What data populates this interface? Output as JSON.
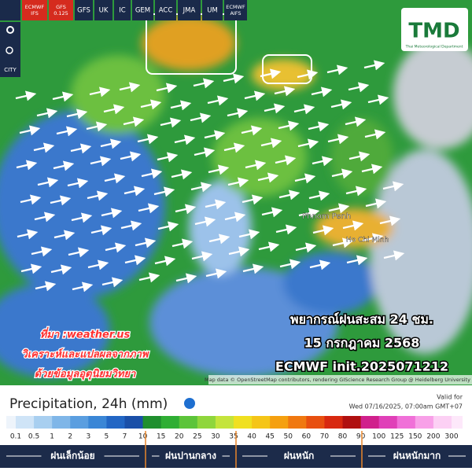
{
  "header": {
    "tabs": [
      "ECMWF IFS",
      "GFS 0.125",
      "GFS",
      "UK",
      "IC",
      "GEM",
      "ACC",
      "JMA",
      "UM",
      "ECMWF AIFS"
    ],
    "side_tools": [
      "CITY"
    ]
  },
  "logo": {
    "title": "TMD",
    "subtitle": "Thai Meteorological Department"
  },
  "map": {
    "places": [
      "Phnom Penh",
      "Ho Chi Minh"
    ],
    "overlay": [
      "พยากรณ์ฝนสะสม 24 ชม.",
      "15 กรกฎาคม 2568",
      "ECMWF init.2025071212"
    ],
    "source": [
      "ที่มา :weather.us",
      "วิเคราะห์และแปลผลจากภาพ",
      "ด้วยข้อมูลอุตุนิยมวิทยา"
    ],
    "attribution": "Map data © OpenStreetMap contributors, rendering GIScience Research Group @ Heidelberg University"
  },
  "legend": {
    "title": "Precipitation, 24h (mm)",
    "valid_label": "Valid for",
    "valid_time": "Wed 07/16/2025, 07:00am GMT+07",
    "ticks": [
      0.1,
      0.5,
      1,
      2,
      3,
      5,
      7,
      10,
      15,
      20,
      25,
      30,
      35,
      40,
      45,
      50,
      60,
      70,
      80,
      90,
      100,
      125,
      150,
      200,
      300
    ],
    "colors": [
      "#cfe4f7",
      "#a8cff0",
      "#7fb6e8",
      "#5a9ee0",
      "#3a86d6",
      "#2266c4",
      "#1a4fa8",
      "#1f8f2e",
      "#2fae34",
      "#5cc43a",
      "#8fd63c",
      "#c4e43c",
      "#f0e020",
      "#f5c518",
      "#f5a010",
      "#f07810",
      "#e84f10",
      "#d82810",
      "#b01010",
      "#d0208c",
      "#e040b8",
      "#f070d8",
      "#f8a0e8",
      "#fcd0f4"
    ],
    "classes": [
      "ฝนเล็กน้อย",
      "ฝนปานกลาง",
      "ฝนหนัก",
      "ฝนหนักมาก"
    ]
  }
}
